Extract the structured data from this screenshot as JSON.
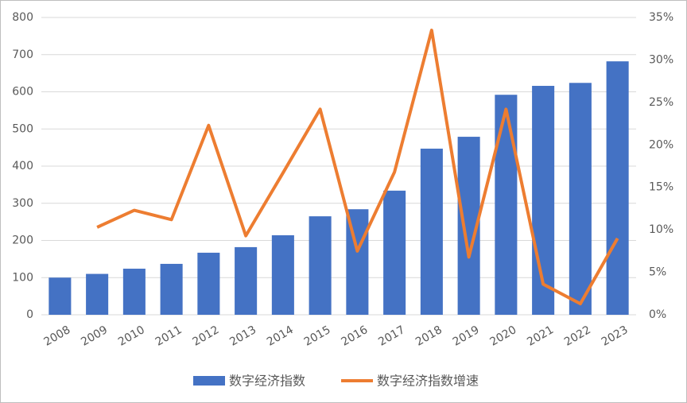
{
  "chart_data": {
    "type": "bar-line",
    "categories": [
      "2008",
      "2009",
      "2010",
      "2011",
      "2012",
      "2013",
      "2014",
      "2015",
      "2016",
      "2017",
      "2018",
      "2019",
      "2020",
      "2021",
      "2022",
      "2023"
    ],
    "series": [
      {
        "name": "数字经济指数",
        "color": "#4472c4",
        "type": "bar",
        "values": [
          100,
          110,
          124,
          137,
          167,
          182,
          214,
          265,
          284,
          334,
          447,
          479,
          592,
          616,
          624,
          682
        ]
      },
      {
        "name": "数字经济指数增速",
        "color": "#ed7d31",
        "type": "line",
        "axis": "y2",
        "values": [
          null,
          10.3,
          12.3,
          11.2,
          22.3,
          9.3,
          16.7,
          24.2,
          7.5,
          16.8,
          33.5,
          6.8,
          24.2,
          3.6,
          1.3,
          9.0
        ]
      }
    ],
    "ylim": [
      0,
      800
    ],
    "yticks": [
      0,
      100,
      200,
      300,
      400,
      500,
      600,
      700,
      800
    ],
    "y2lim": [
      0,
      35
    ],
    "y2ticks": [
      {
        "value": 0,
        "label": "0%"
      },
      {
        "value": 5,
        "label": "5%"
      },
      {
        "value": 10,
        "label": "10%"
      },
      {
        "value": 15,
        "label": "15%"
      },
      {
        "value": 20,
        "label": "20%"
      },
      {
        "value": 25,
        "label": "25%"
      },
      {
        "value": 30,
        "label": "30%"
      },
      {
        "value": 35,
        "label": "35%"
      }
    ],
    "grid": true,
    "legend": "bottom"
  }
}
